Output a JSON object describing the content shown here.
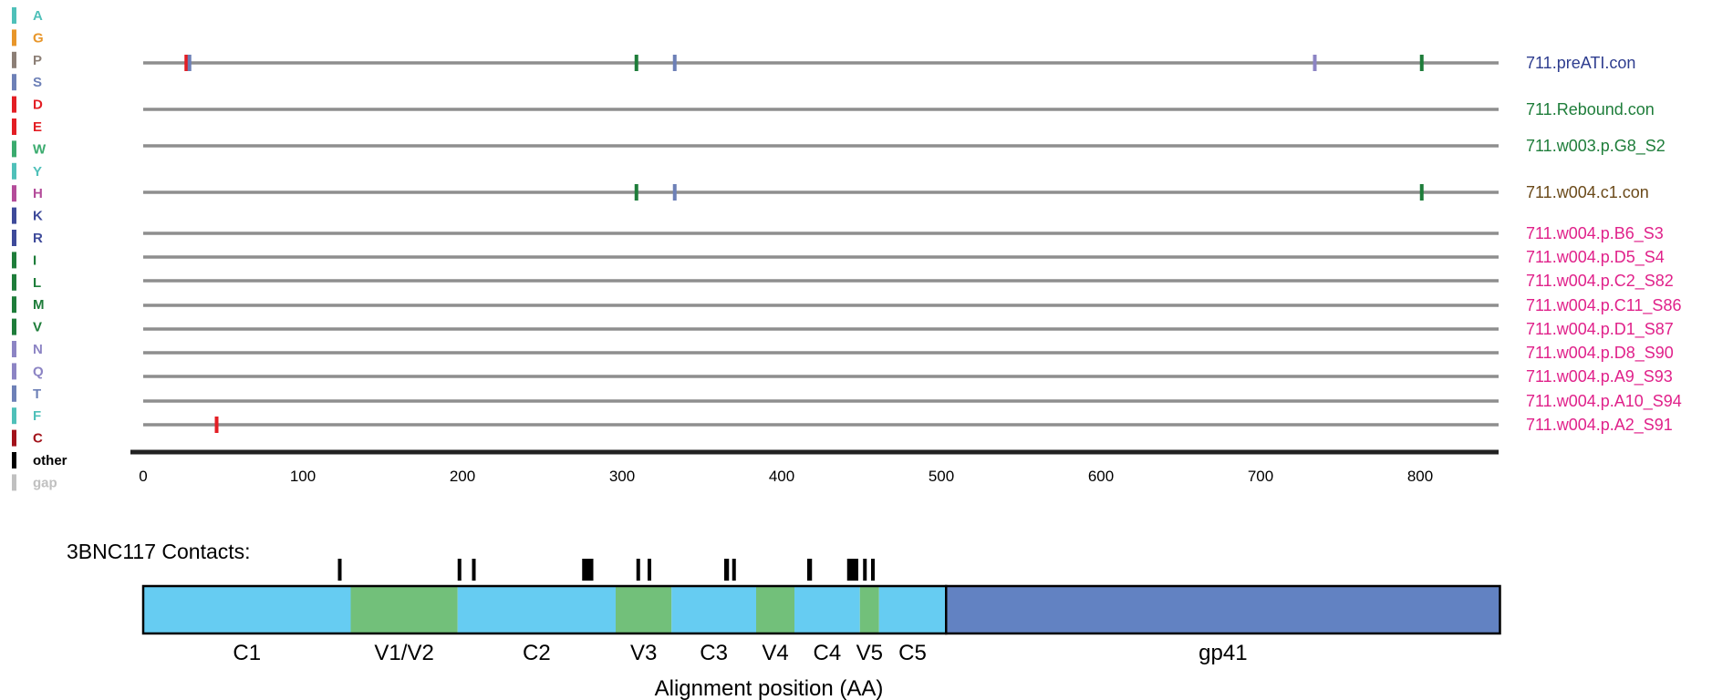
{
  "legend": [
    {
      "label": "A",
      "color": "#4fc0b9"
    },
    {
      "label": "G",
      "color": "#e8962a"
    },
    {
      "label": "P",
      "color": "#8c7f76"
    },
    {
      "label": "S",
      "color": "#6d80b7"
    },
    {
      "label": "D",
      "color": "#e31e24"
    },
    {
      "label": "E",
      "color": "#e31e24"
    },
    {
      "label": "W",
      "color": "#3aab6e"
    },
    {
      "label": "Y",
      "color": "#4fc0b9"
    },
    {
      "label": "H",
      "color": "#b44c9a"
    },
    {
      "label": "K",
      "color": "#3e4a9a"
    },
    {
      "label": "R",
      "color": "#3e4a9a"
    },
    {
      "label": "I",
      "color": "#1e7d3a"
    },
    {
      "label": "L",
      "color": "#1e7d3a"
    },
    {
      "label": "M",
      "color": "#1e7d3a"
    },
    {
      "label": "V",
      "color": "#1e7d3a"
    },
    {
      "label": "N",
      "color": "#8c84c4"
    },
    {
      "label": "Q",
      "color": "#8c84c4"
    },
    {
      "label": "T",
      "color": "#6d80b7"
    },
    {
      "label": "F",
      "color": "#4fc0b9"
    },
    {
      "label": "C",
      "color": "#a2121a"
    },
    {
      "label": "other",
      "color": "#000000"
    },
    {
      "label": "gap",
      "color": "#c0c0c0"
    }
  ],
  "sequences": [
    {
      "name": "711.preATI.con",
      "color": "#2e3d8f",
      "mutations": [
        {
          "pos": 27,
          "color": "#e31e24"
        },
        {
          "pos": 29,
          "color": "#6d80b7"
        },
        {
          "pos": 309,
          "color": "#1e7d3a"
        },
        {
          "pos": 333,
          "color": "#6d80b7"
        },
        {
          "pos": 734,
          "color": "#8c84c4"
        },
        {
          "pos": 801,
          "color": "#1e7d3a"
        }
      ]
    },
    {
      "name": "711.Rebound.con",
      "color": "#1e7d3a",
      "mutations": []
    },
    {
      "name": "711.w003.p.G8_S2",
      "color": "#1e7d3a",
      "mutations": []
    },
    {
      "name": "711.w004.c1.con",
      "color": "#6b4a1a",
      "mutations": [
        {
          "pos": 309,
          "color": "#1e7d3a"
        },
        {
          "pos": 333,
          "color": "#6d80b7"
        },
        {
          "pos": 801,
          "color": "#1e7d3a"
        }
      ]
    },
    {
      "name": "711.w004.p.B6_S3",
      "color": "#e0218a",
      "mutations": []
    },
    {
      "name": "711.w004.p.D5_S4",
      "color": "#e0218a",
      "mutations": []
    },
    {
      "name": "711.w004.p.C2_S82",
      "color": "#e0218a",
      "mutations": []
    },
    {
      "name": "711.w004.p.C11_S86",
      "color": "#e0218a",
      "mutations": []
    },
    {
      "name": "711.w004.p.D1_S87",
      "color": "#e0218a",
      "mutations": []
    },
    {
      "name": "711.w004.p.D8_S90",
      "color": "#e0218a",
      "mutations": []
    },
    {
      "name": "711.w004.p.A9_S93",
      "color": "#e0218a",
      "mutations": []
    },
    {
      "name": "711.w004.p.A10_S94",
      "color": "#e0218a",
      "mutations": []
    },
    {
      "name": "711.w004.p.A2_S91",
      "color": "#e0218a",
      "mutations": [
        {
          "pos": 46,
          "color": "#e31e24"
        }
      ]
    }
  ],
  "axis": {
    "min": 0,
    "max": 850,
    "ticks": [
      0,
      100,
      200,
      300,
      400,
      500,
      600,
      700,
      800
    ]
  },
  "contacts": {
    "title": "3BNC117 Contacts:",
    "ranges": [
      [
        122,
        124
      ],
      [
        197,
        199
      ],
      [
        206,
        208
      ],
      [
        275,
        282
      ],
      [
        309,
        311
      ],
      [
        316,
        318
      ],
      [
        364,
        367
      ],
      [
        369,
        371
      ],
      [
        416,
        419
      ],
      [
        441,
        448
      ],
      [
        451,
        453
      ],
      [
        456,
        458
      ]
    ]
  },
  "regions": [
    {
      "label": "C1",
      "start": 0,
      "end": 130,
      "color": "#66ccf2"
    },
    {
      "label": "V1/V2",
      "start": 130,
      "end": 197,
      "color": "#72c07a"
    },
    {
      "label": "C2",
      "start": 197,
      "end": 296,
      "color": "#66ccf2"
    },
    {
      "label": "V3",
      "start": 296,
      "end": 331,
      "color": "#72c07a"
    },
    {
      "label": "C3",
      "start": 331,
      "end": 384,
      "color": "#66ccf2"
    },
    {
      "label": "V4",
      "start": 384,
      "end": 408,
      "color": "#72c07a"
    },
    {
      "label": "C4",
      "start": 408,
      "end": 449,
      "color": "#66ccf2"
    },
    {
      "label": "V5",
      "start": 449,
      "end": 461,
      "color": "#72c07a"
    },
    {
      "label": "C5",
      "start": 461,
      "end": 503,
      "color": "#66ccf2"
    },
    {
      "label": "gp41",
      "start": 503,
      "end": 850,
      "color": "#6282c2"
    }
  ],
  "xlabel": "Alignment position (AA)"
}
